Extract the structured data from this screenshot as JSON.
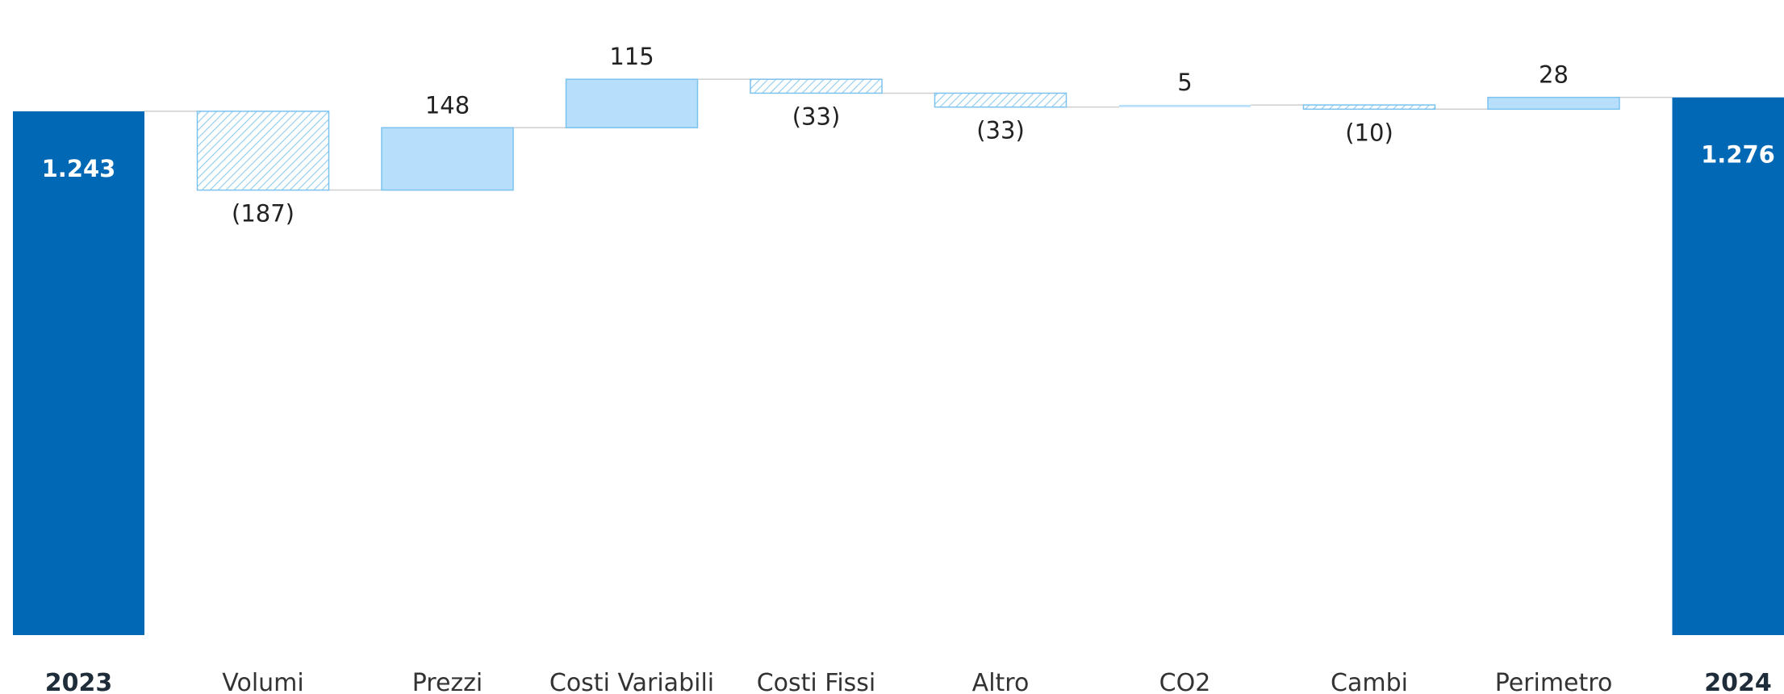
{
  "chart_data": {
    "type": "waterfall",
    "title": "",
    "xlabel": "",
    "ylabel": "",
    "ylim": [
      0,
      1450
    ],
    "grid": false,
    "legend": "none",
    "colors": {
      "total": "#0068b4",
      "positive_fill": "#b7dffb",
      "positive_stroke": "#7cc2ee",
      "negative_hatch": "#8dcbf0",
      "negative_stroke": "#7cc2ee",
      "connector": "#cfcfcf"
    },
    "steps": [
      {
        "category": "2023",
        "kind": "total",
        "value": 1243,
        "label": "1.243"
      },
      {
        "category": "Volumi",
        "kind": "delta",
        "value": -187,
        "label": "(187)"
      },
      {
        "category": "Prezzi",
        "kind": "delta",
        "value": 148,
        "label": "148"
      },
      {
        "category": "Costi Variabili",
        "kind": "delta",
        "value": 115,
        "label": "115"
      },
      {
        "category": "Costi Fissi",
        "kind": "delta",
        "value": -33,
        "label": "(33)"
      },
      {
        "category": "Altro",
        "kind": "delta",
        "value": -33,
        "label": "(33)"
      },
      {
        "category": "CO2",
        "kind": "delta",
        "value": 5,
        "label": "5"
      },
      {
        "category": "Cambi",
        "kind": "delta",
        "value": -10,
        "label": "(10)"
      },
      {
        "category": "Perimetro",
        "kind": "delta",
        "value": 28,
        "label": "28"
      },
      {
        "category": "2024",
        "kind": "total",
        "value": 1276,
        "label": "1.276"
      }
    ]
  }
}
